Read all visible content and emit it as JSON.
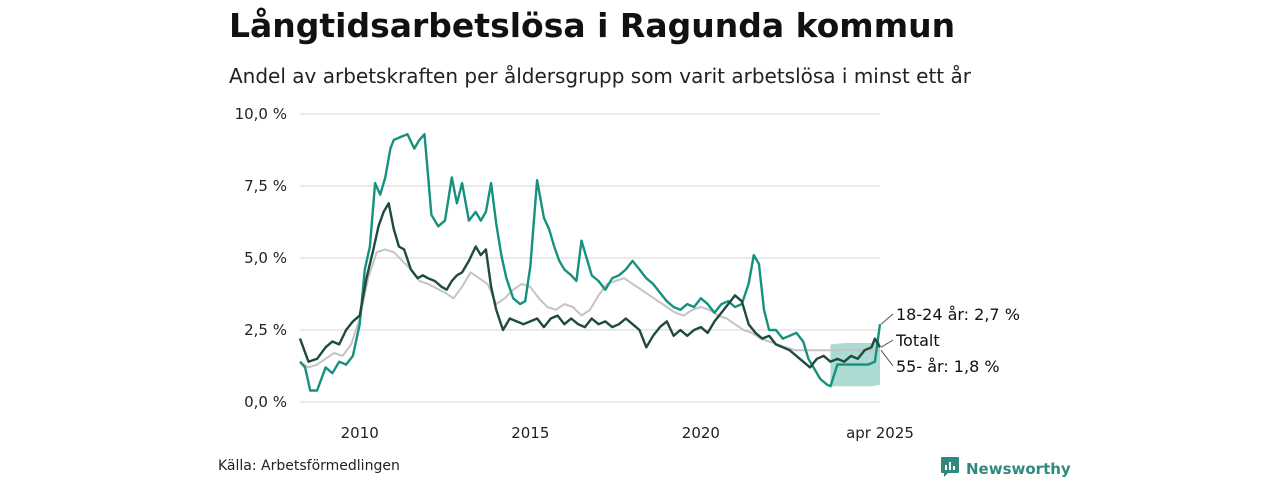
{
  "header": {
    "title": "Långtidsarbetslösa i Ragunda kommun",
    "subtitle": "Andel av arbetskraften per åldersgrupp som varit arbetslösa i minst ett år"
  },
  "footer": {
    "source": "Källa: Arbetsförmedlingen",
    "brand": "Newsworthy"
  },
  "colors": {
    "young": "#17917f",
    "total": "#1f4a3f",
    "old": "#c4c4c4",
    "band": "#7ec8bb",
    "grid": "#dddddd",
    "brand": "#2f8a7d"
  },
  "icons": {
    "brand_logo": "bar-chart-speech-bubble-icon"
  },
  "chart_data": {
    "type": "line",
    "ylim": [
      0,
      10
    ],
    "xlim": [
      2008.25,
      2025.25
    ],
    "yticks": [
      {
        "value": 0,
        "label": "0,0 %"
      },
      {
        "value": 2.5,
        "label": "2,5 %"
      },
      {
        "value": 5,
        "label": "5,0 %"
      },
      {
        "value": 7.5,
        "label": "7,5 %"
      },
      {
        "value": 10,
        "label": "10,0 %"
      }
    ],
    "xticks": [
      {
        "value": 2010,
        "label": "2010"
      },
      {
        "value": 2015,
        "label": "2015"
      },
      {
        "value": 2020,
        "label": "2020"
      },
      {
        "value": 2025.25,
        "label": "apr 2025"
      }
    ],
    "grid": true,
    "legend": "direct labels at right",
    "band": {
      "x": [
        2023.8,
        2024.2,
        2024.6,
        2025.0,
        2025.25
      ],
      "upper": [
        2.0,
        2.05,
        2.05,
        2.05,
        2.1
      ],
      "lower": [
        0.55,
        0.55,
        0.55,
        0.55,
        0.6
      ]
    },
    "series": [
      {
        "key": "old",
        "name": "55- år",
        "end_label": "55- år: 1,8 %",
        "x": [
          2008.25,
          2008.5,
          2008.75,
          2009.0,
          2009.25,
          2009.5,
          2009.75,
          2010.0,
          2010.25,
          2010.5,
          2010.75,
          2011.0,
          2011.25,
          2011.5,
          2011.75,
          2012.0,
          2012.5,
          2012.75,
          2013.0,
          2013.25,
          2013.5,
          2013.75,
          2014.0,
          2014.25,
          2014.5,
          2014.75,
          2015.0,
          2015.25,
          2015.5,
          2015.75,
          2016.0,
          2016.25,
          2016.5,
          2016.75,
          2017.0,
          2017.25,
          2017.5,
          2017.75,
          2018.0,
          2018.25,
          2018.5,
          2018.75,
          2019.0,
          2019.25,
          2019.5,
          2019.75,
          2020.0,
          2020.25,
          2020.5,
          2020.75,
          2021.0,
          2021.25,
          2021.5,
          2021.75,
          2022.0,
          2022.25,
          2022.5,
          2022.75,
          2023.0,
          2023.25,
          2023.5,
          2023.75,
          2024.0,
          2024.25,
          2024.5,
          2024.75,
          2025.0,
          2025.25
        ],
        "y": [
          1.4,
          1.2,
          1.3,
          1.5,
          1.7,
          1.6,
          2.0,
          2.9,
          4.3,
          5.2,
          5.3,
          5.2,
          4.9,
          4.6,
          4.2,
          4.1,
          3.8,
          3.6,
          4.0,
          4.5,
          4.3,
          4.1,
          3.4,
          3.6,
          3.9,
          4.1,
          4.0,
          3.6,
          3.3,
          3.2,
          3.4,
          3.3,
          3.0,
          3.2,
          3.7,
          4.1,
          4.2,
          4.3,
          4.1,
          3.9,
          3.7,
          3.5,
          3.3,
          3.1,
          3.0,
          3.2,
          3.3,
          3.2,
          3.0,
          2.9,
          2.7,
          2.5,
          2.4,
          2.2,
          2.1,
          2.0,
          1.9,
          1.8,
          1.8,
          1.8,
          1.8,
          1.8,
          1.8,
          1.8,
          1.8,
          1.8,
          1.8,
          1.8
        ]
      },
      {
        "key": "young",
        "name": "18-24 år",
        "end_label": "18-24 år: 2,7 %",
        "x": [
          2008.25,
          2008.4,
          2008.55,
          2008.75,
          2009.0,
          2009.2,
          2009.4,
          2009.6,
          2009.8,
          2010.0,
          2010.15,
          2010.3,
          2010.45,
          2010.6,
          2010.75,
          2010.9,
          2011.0,
          2011.2,
          2011.4,
          2011.6,
          2011.75,
          2011.9,
          2012.1,
          2012.3,
          2012.5,
          2012.7,
          2012.85,
          2013.0,
          2013.2,
          2013.4,
          2013.55,
          2013.7,
          2013.85,
          2014.0,
          2014.15,
          2014.3,
          2014.5,
          2014.7,
          2014.85,
          2015.0,
          2015.2,
          2015.4,
          2015.55,
          2015.7,
          2015.85,
          2016.0,
          2016.2,
          2016.35,
          2016.5,
          2016.65,
          2016.8,
          2017.0,
          2017.2,
          2017.4,
          2017.6,
          2017.8,
          2018.0,
          2018.2,
          2018.4,
          2018.6,
          2018.8,
          2019.0,
          2019.2,
          2019.4,
          2019.6,
          2019.8,
          2020.0,
          2020.2,
          2020.4,
          2020.6,
          2020.8,
          2021.0,
          2021.2,
          2021.4,
          2021.55,
          2021.7,
          2021.85,
          2022.0,
          2022.2,
          2022.4,
          2022.6,
          2022.8,
          2023.0,
          2023.15,
          2023.3,
          2023.5,
          2023.7,
          2023.8,
          2024.0,
          2024.3,
          2024.6,
          2024.9,
          2025.1,
          2025.25
        ],
        "y": [
          1.4,
          1.2,
          0.4,
          0.4,
          1.2,
          1.0,
          1.4,
          1.3,
          1.6,
          2.7,
          4.6,
          5.4,
          7.6,
          7.2,
          7.8,
          8.8,
          9.1,
          9.2,
          9.3,
          8.8,
          9.1,
          9.3,
          6.5,
          6.1,
          6.3,
          7.8,
          6.9,
          7.6,
          6.3,
          6.6,
          6.3,
          6.6,
          7.6,
          6.2,
          5.1,
          4.3,
          3.6,
          3.4,
          3.5,
          4.7,
          7.7,
          6.4,
          6.0,
          5.4,
          4.9,
          4.6,
          4.4,
          4.2,
          5.6,
          5.0,
          4.4,
          4.2,
          3.9,
          4.3,
          4.4,
          4.6,
          4.9,
          4.6,
          4.3,
          4.1,
          3.8,
          3.5,
          3.3,
          3.2,
          3.4,
          3.3,
          3.6,
          3.4,
          3.1,
          3.4,
          3.5,
          3.3,
          3.4,
          4.1,
          5.1,
          4.8,
          3.2,
          2.5,
          2.5,
          2.2,
          2.3,
          2.4,
          2.1,
          1.5,
          1.2,
          0.8,
          0.6,
          0.55,
          1.3,
          1.3,
          1.3,
          1.3,
          1.4,
          2.7
        ]
      },
      {
        "key": "total",
        "name": "Totalt",
        "end_label": "Totalt",
        "x": [
          2008.25,
          2008.5,
          2008.75,
          2009.0,
          2009.2,
          2009.4,
          2009.6,
          2009.8,
          2010.0,
          2010.2,
          2010.4,
          2010.55,
          2010.7,
          2010.85,
          2011.0,
          2011.15,
          2011.3,
          2011.5,
          2011.7,
          2011.85,
          2012.0,
          2012.2,
          2012.4,
          2012.55,
          2012.7,
          2012.85,
          2013.0,
          2013.2,
          2013.4,
          2013.55,
          2013.7,
          2013.85,
          2014.0,
          2014.2,
          2014.4,
          2014.6,
          2014.8,
          2015.0,
          2015.2,
          2015.4,
          2015.6,
          2015.8,
          2016.0,
          2016.2,
          2016.4,
          2016.6,
          2016.8,
          2017.0,
          2017.2,
          2017.4,
          2017.6,
          2017.8,
          2018.0,
          2018.2,
          2018.4,
          2018.6,
          2018.8,
          2019.0,
          2019.2,
          2019.4,
          2019.6,
          2019.8,
          2020.0,
          2020.2,
          2020.4,
          2020.6,
          2020.8,
          2021.0,
          2021.2,
          2021.4,
          2021.6,
          2021.8,
          2022.0,
          2022.2,
          2022.4,
          2022.6,
          2022.8,
          2023.0,
          2023.2,
          2023.4,
          2023.6,
          2023.8,
          2024.0,
          2024.2,
          2024.4,
          2024.6,
          2024.8,
          2025.0,
          2025.1,
          2025.25
        ],
        "y": [
          2.2,
          1.4,
          1.5,
          1.9,
          2.1,
          2.0,
          2.5,
          2.8,
          3.0,
          4.3,
          5.3,
          6.1,
          6.6,
          6.9,
          6.0,
          5.4,
          5.3,
          4.6,
          4.3,
          4.4,
          4.3,
          4.2,
          4.0,
          3.9,
          4.2,
          4.4,
          4.5,
          4.9,
          5.4,
          5.1,
          5.3,
          4.0,
          3.2,
          2.5,
          2.9,
          2.8,
          2.7,
          2.8,
          2.9,
          2.6,
          2.9,
          3.0,
          2.7,
          2.9,
          2.7,
          2.6,
          2.9,
          2.7,
          2.8,
          2.6,
          2.7,
          2.9,
          2.7,
          2.5,
          1.9,
          2.3,
          2.6,
          2.8,
          2.3,
          2.5,
          2.3,
          2.5,
          2.6,
          2.4,
          2.8,
          3.1,
          3.4,
          3.7,
          3.5,
          2.7,
          2.4,
          2.2,
          2.3,
          2.0,
          1.9,
          1.8,
          1.6,
          1.4,
          1.2,
          1.5,
          1.6,
          1.4,
          1.5,
          1.4,
          1.6,
          1.5,
          1.8,
          1.9,
          2.2,
          1.9
        ]
      }
    ]
  }
}
